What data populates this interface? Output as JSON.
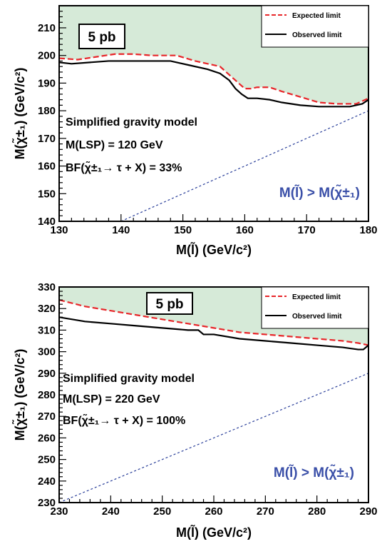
{
  "chart_data": [
    {
      "type": "line",
      "xlabel": "M(l̃) (GeV/c²)",
      "ylabel": "M(χ̃±₁) (GeV/c²)",
      "xlim": [
        130,
        180
      ],
      "ylim": [
        140,
        218
      ],
      "xticks": [
        130,
        140,
        150,
        160,
        170,
        180
      ],
      "yticks": [
        140,
        150,
        160,
        170,
        180,
        190,
        200,
        210
      ],
      "cross_section_label": "5 pb",
      "annotations": [
        "Simplified gravity model",
        "M(LSP) = 120 GeV",
        "BF(χ̃±₁→ τ + X) = 33%"
      ],
      "region_label": "M(l̃) > M(χ̃±₁)",
      "legend": {
        "position": "top-right",
        "entries": [
          "Expected limit",
          "Observed limit"
        ]
      },
      "excluded_fill_color": "#d6ead8",
      "series": [
        {
          "name": "Expected limit",
          "color": "#e8262a",
          "dash": true,
          "x": [
            130,
            133,
            136,
            139,
            142,
            145,
            149,
            152,
            154,
            156,
            157.5,
            159,
            160,
            161,
            162,
            164,
            166,
            169,
            172,
            175,
            178,
            180
          ],
          "y": [
            199,
            198.5,
            199.5,
            200.5,
            200.5,
            200,
            200,
            198,
            197,
            196,
            193,
            190,
            188,
            188,
            188.5,
            188.5,
            187,
            185,
            183,
            182.5,
            182.5,
            184.5
          ]
        },
        {
          "name": "Observed limit",
          "color": "#000000",
          "dash": false,
          "x": [
            130,
            132,
            135,
            138,
            141,
            144,
            148,
            151,
            154,
            156,
            157.5,
            158.5,
            159.5,
            160.5,
            162,
            164,
            166,
            169,
            172,
            175,
            177,
            179,
            180
          ],
          "y": [
            197.5,
            197,
            197.5,
            198,
            198,
            198,
            198,
            196.5,
            195,
            193.5,
            191,
            188,
            186,
            184.5,
            184.5,
            184,
            183,
            182,
            181.5,
            181.5,
            181.5,
            182.5,
            184
          ]
        }
      ],
      "diagonal": {
        "x": [
          140,
          180
        ],
        "y": [
          140,
          180
        ]
      }
    },
    {
      "type": "line",
      "xlabel": "M(l̃) (GeV/c²)",
      "ylabel": "M(χ̃±₁) (GeV/c²)",
      "xlim": [
        230,
        290
      ],
      "ylim": [
        230,
        330
      ],
      "xticks": [
        230,
        240,
        250,
        260,
        270,
        280,
        290
      ],
      "yticks": [
        230,
        240,
        250,
        260,
        270,
        280,
        290,
        300,
        310,
        320,
        330
      ],
      "cross_section_label": "5 pb",
      "annotations": [
        "Simplified gravity model",
        "M(LSP) = 220 GeV",
        "BF(χ̃±₁→ τ + X) = 100%"
      ],
      "region_label": "M(l̃) > M(χ̃±₁)",
      "legend": {
        "position": "top-right",
        "entries": [
          "Expected limit",
          "Observed limit"
        ]
      },
      "excluded_fill_color": "#d6ead8",
      "series": [
        {
          "name": "Expected limit",
          "color": "#e8262a",
          "dash": true,
          "x": [
            230,
            235,
            240,
            245,
            250,
            255,
            260,
            265,
            270,
            275,
            280,
            285,
            288,
            290
          ],
          "y": [
            324,
            321,
            319,
            317,
            315,
            313,
            311,
            309,
            308,
            307,
            306,
            305,
            304,
            303
          ]
        },
        {
          "name": "Observed limit",
          "color": "#000000",
          "dash": false,
          "x": [
            230,
            235,
            240,
            245,
            250,
            255,
            257,
            258,
            260,
            265,
            270,
            275,
            280,
            285,
            288,
            289,
            290
          ],
          "y": [
            316,
            314,
            313,
            312,
            311,
            310,
            310,
            308,
            308,
            306,
            305,
            304,
            303,
            302,
            301,
            301,
            303
          ]
        }
      ],
      "diagonal": {
        "x": [
          230,
          290
        ],
        "y": [
          230,
          290
        ]
      }
    }
  ]
}
